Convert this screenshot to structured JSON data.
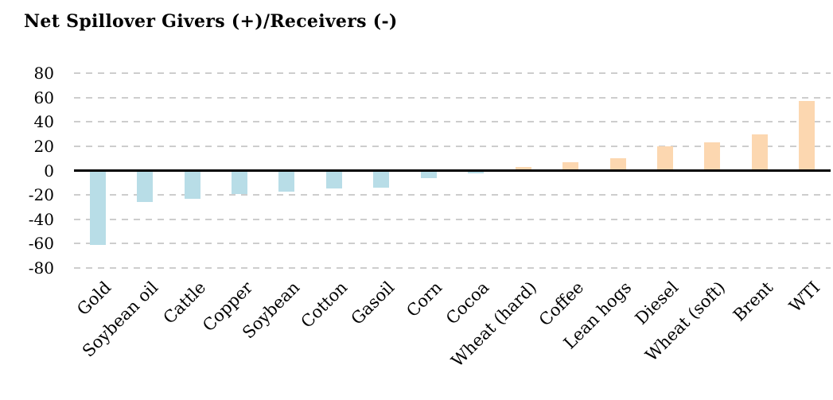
{
  "title": "Net Spillover Givers (+)/Receivers (-)",
  "chart_data": {
    "type": "bar",
    "title": "Net Spillover Givers (+)/Receivers (-)",
    "categories": [
      "Gold",
      "Soybean oil",
      "Cattle",
      "Copper",
      "Soybean",
      "Cotton",
      "Gasoil",
      "Corn",
      "Cocoa",
      "Wheat (hard)",
      "Coffee",
      "Lean hogs",
      "Diesel",
      "Wheat (soft)",
      "Brent",
      "WTI"
    ],
    "values": [
      -61,
      -26,
      -23,
      -19,
      -17,
      -15,
      -14,
      -6,
      -2,
      3,
      7,
      10,
      20,
      23,
      30,
      57
    ],
    "ylim": [
      -80,
      80
    ],
    "yticks": [
      80,
      60,
      40,
      20,
      0,
      -20,
      -40,
      -60,
      -80
    ],
    "xlabel": "",
    "ylabel": "",
    "grid": "horizontal-dashed",
    "legend": "none",
    "zero_axis": "solid-black",
    "colors": {
      "negative_bar": "#b8dde7",
      "positive_bar": "#fcd7b0",
      "gridline": "#cdcdcd",
      "zero_line": "#000000",
      "text": "#000000",
      "background": "#ffffff"
    }
  }
}
